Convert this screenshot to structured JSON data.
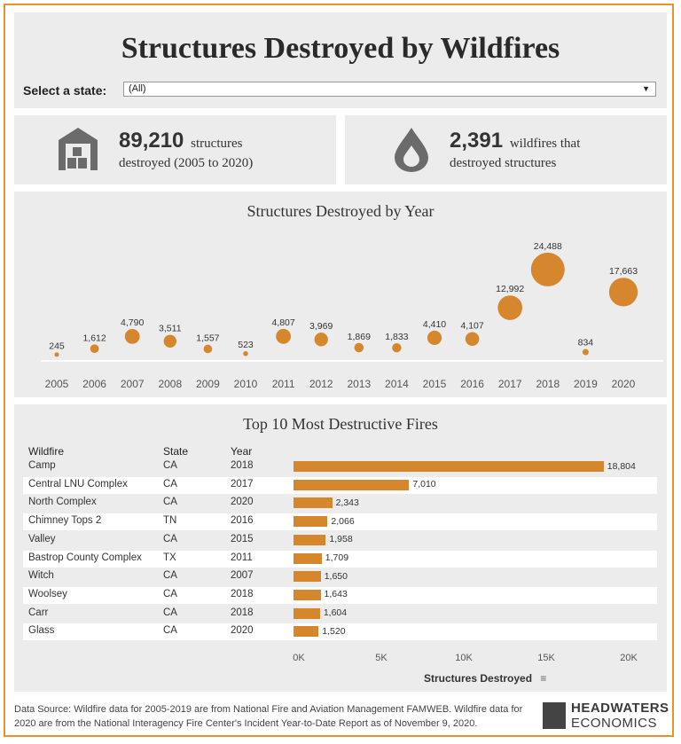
{
  "title": "Structures Destroyed by Wildfires",
  "filter": {
    "label": "Select a state:",
    "value": "(All)"
  },
  "kpis": [
    {
      "value": "89,210",
      "line1": "structures",
      "line2": "destroyed (2005 to 2020)",
      "icon": "building-icon"
    },
    {
      "value": "2,391",
      "line1": "wildfires that",
      "line2": "destroyed structures",
      "icon": "fire-drop-icon"
    }
  ],
  "colors": {
    "accent": "#d6862c",
    "border": "#e8922e",
    "panel": "#ececec"
  },
  "year_chart": {
    "title": "Structures Destroyed by Year",
    "years": [
      "2005",
      "2006",
      "2007",
      "2008",
      "2009",
      "2010",
      "2011",
      "2012",
      "2013",
      "2014",
      "2015",
      "2016",
      "2017",
      "2018",
      "2019",
      "2020"
    ],
    "value_labels": [
      "245",
      "1,612",
      "4,790",
      "3,511",
      "1,557",
      "523",
      "4,807",
      "3,969",
      "1,869",
      "1,833",
      "4,410",
      "4,107",
      "12,992",
      "24,488",
      "834",
      "17,663"
    ]
  },
  "top_fires": {
    "title": "Top 10 Most Destructive Fires",
    "headers": {
      "wildfire": "Wildfire",
      "state": "State",
      "year": "Year"
    },
    "rows": [
      {
        "name": "Camp",
        "state": "CA",
        "year": "2018",
        "label": "18,804"
      },
      {
        "name": "Central LNU Complex",
        "state": "CA",
        "year": "2017",
        "label": "7,010"
      },
      {
        "name": "North Complex",
        "state": "CA",
        "year": "2020",
        "label": "2,343"
      },
      {
        "name": "Chimney Tops 2",
        "state": "TN",
        "year": "2016",
        "label": "2,066"
      },
      {
        "name": "Valley",
        "state": "CA",
        "year": "2015",
        "label": "1,958"
      },
      {
        "name": "Bastrop County Complex",
        "state": "TX",
        "year": "2011",
        "label": "1,709"
      },
      {
        "name": "Witch",
        "state": "CA",
        "year": "2007",
        "label": "1,650"
      },
      {
        "name": "Woolsey",
        "state": "CA",
        "year": "2018",
        "label": "1,643"
      },
      {
        "name": "Carr",
        "state": "CA",
        "year": "2018",
        "label": "1,604"
      },
      {
        "name": "Glass",
        "state": "CA",
        "year": "2020",
        "label": "1,520"
      }
    ],
    "x_ticks": [
      "0K",
      "5K",
      "10K",
      "15K",
      "20K"
    ],
    "x_title": "Structures Destroyed"
  },
  "chart_data": [
    {
      "type": "scatter",
      "title": "Structures Destroyed by Year",
      "x": [
        2005,
        2006,
        2007,
        2008,
        2009,
        2010,
        2011,
        2012,
        2013,
        2014,
        2015,
        2016,
        2017,
        2018,
        2019,
        2020
      ],
      "values": [
        245,
        1612,
        4790,
        3511,
        1557,
        523,
        4807,
        3969,
        1869,
        1833,
        4410,
        4107,
        12992,
        24488,
        834,
        17663
      ],
      "xlabel": "",
      "ylabel": ""
    },
    {
      "type": "bar",
      "title": "Top 10 Most Destructive Fires",
      "categories": [
        "Camp",
        "Central LNU Complex",
        "North Complex",
        "Chimney Tops 2",
        "Valley",
        "Bastrop County Complex",
        "Witch",
        "Woolsey",
        "Carr",
        "Glass"
      ],
      "values": [
        18804,
        7010,
        2343,
        2066,
        1958,
        1709,
        1650,
        1643,
        1604,
        1520
      ],
      "xlabel": "Structures Destroyed",
      "ylabel": "",
      "xlim": [
        0,
        20000
      ]
    }
  ],
  "footer": {
    "source": "Data Source: Wildfire data for 2005-2019 are from National Fire and Aviation Management FAMWEB. Wildfire data for 2020 are from the National Interagency Fire Center's Incident Year-to-Date Report as of November 9, 2020.",
    "logo_line1": "HEADWATERS",
    "logo_line2": "ECONOMICS"
  }
}
